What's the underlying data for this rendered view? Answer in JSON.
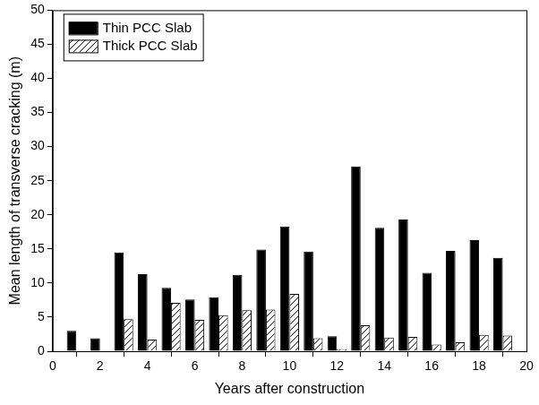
{
  "chart_data": {
    "type": "bar",
    "x_label": "Years after construction",
    "y_label": "Mean length of transverse cracking (m)",
    "x": [
      1,
      2,
      3,
      4,
      5,
      6,
      7,
      8,
      9,
      10,
      11,
      12,
      13,
      14,
      15,
      16,
      17,
      18,
      19
    ],
    "series": [
      {
        "name": "Thin PCC Slab",
        "color": "#000000",
        "values": [
          3.0,
          1.9,
          14.5,
          11.3,
          9.3,
          7.6,
          7.9,
          11.2,
          14.9,
          18.3,
          14.6,
          2.2,
          27.1,
          18.1,
          19.3,
          11.5,
          14.7,
          16.3,
          13.7
        ]
      },
      {
        "name": "Thick PCC Slab",
        "color": "#000000",
        "values": [
          0,
          0,
          4.7,
          1.7,
          7.1,
          4.6,
          5.3,
          6.0,
          6.1,
          8.4,
          1.9,
          0.3,
          3.8,
          2.0,
          2.1,
          1.0,
          1.3,
          2.4,
          2.3
        ]
      }
    ],
    "xlim": [
      0,
      20
    ],
    "xticks": [
      0,
      2,
      4,
      6,
      8,
      10,
      12,
      14,
      16,
      18,
      20
    ],
    "ylim": [
      0,
      50
    ],
    "yticks": [
      0,
      5,
      10,
      15,
      20,
      25,
      30,
      35,
      40,
      45,
      50
    ],
    "grid": false,
    "legend": "top-left"
  }
}
